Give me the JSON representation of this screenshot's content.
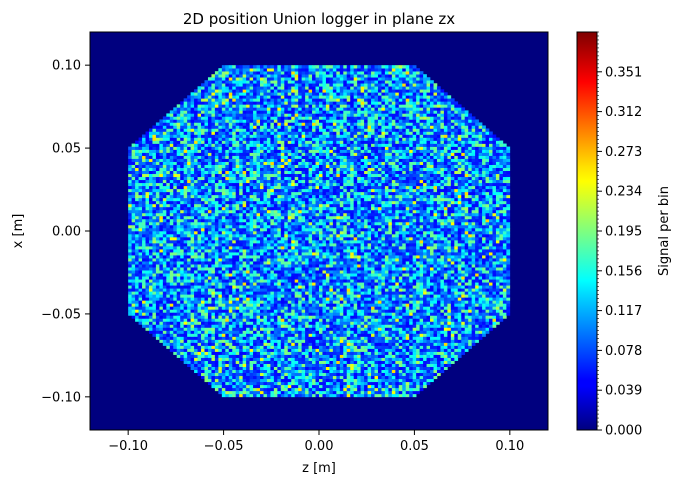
{
  "chart_data": {
    "type": "heatmap",
    "title": "2D position Union logger in plane zx",
    "xlabel": "z [m]",
    "ylabel": "x [m]",
    "xlim": [
      -0.12,
      0.12
    ],
    "ylim": [
      -0.12,
      0.12
    ],
    "x_ticks": [
      -0.1,
      -0.05,
      0.0,
      0.05,
      0.1
    ],
    "x_tick_labels": [
      "−0.10",
      "−0.05",
      "0.00",
      "0.05",
      "0.10"
    ],
    "y_ticks": [
      -0.1,
      -0.05,
      0.0,
      0.05,
      0.1
    ],
    "y_tick_labels": [
      "−0.10",
      "−0.05",
      "0.00",
      "0.05",
      "0.10"
    ],
    "colormap": "jet",
    "background_value": 0.0,
    "region": {
      "shape": "octagon",
      "vertices": [
        [
          -0.05,
          0.1
        ],
        [
          0.05,
          0.1
        ],
        [
          0.1,
          0.05
        ],
        [
          0.1,
          -0.05
        ],
        [
          0.05,
          -0.1
        ],
        [
          -0.05,
          -0.1
        ],
        [
          -0.1,
          -0.05
        ],
        [
          -0.1,
          0.05
        ]
      ],
      "typical_signal_range": [
        0.05,
        0.2
      ],
      "bins_per_axis": 220
    },
    "colorbar": {
      "label": "Signal per bin",
      "range": [
        0.0,
        0.39
      ],
      "ticks": [
        0.0,
        0.039,
        0.078,
        0.117,
        0.156,
        0.195,
        0.234,
        0.273,
        0.312,
        0.351
      ],
      "tick_labels": [
        "0.000",
        "0.039",
        "0.078",
        "0.117",
        "0.156",
        "0.195",
        "0.234",
        "0.273",
        "0.312",
        "0.351"
      ]
    }
  }
}
